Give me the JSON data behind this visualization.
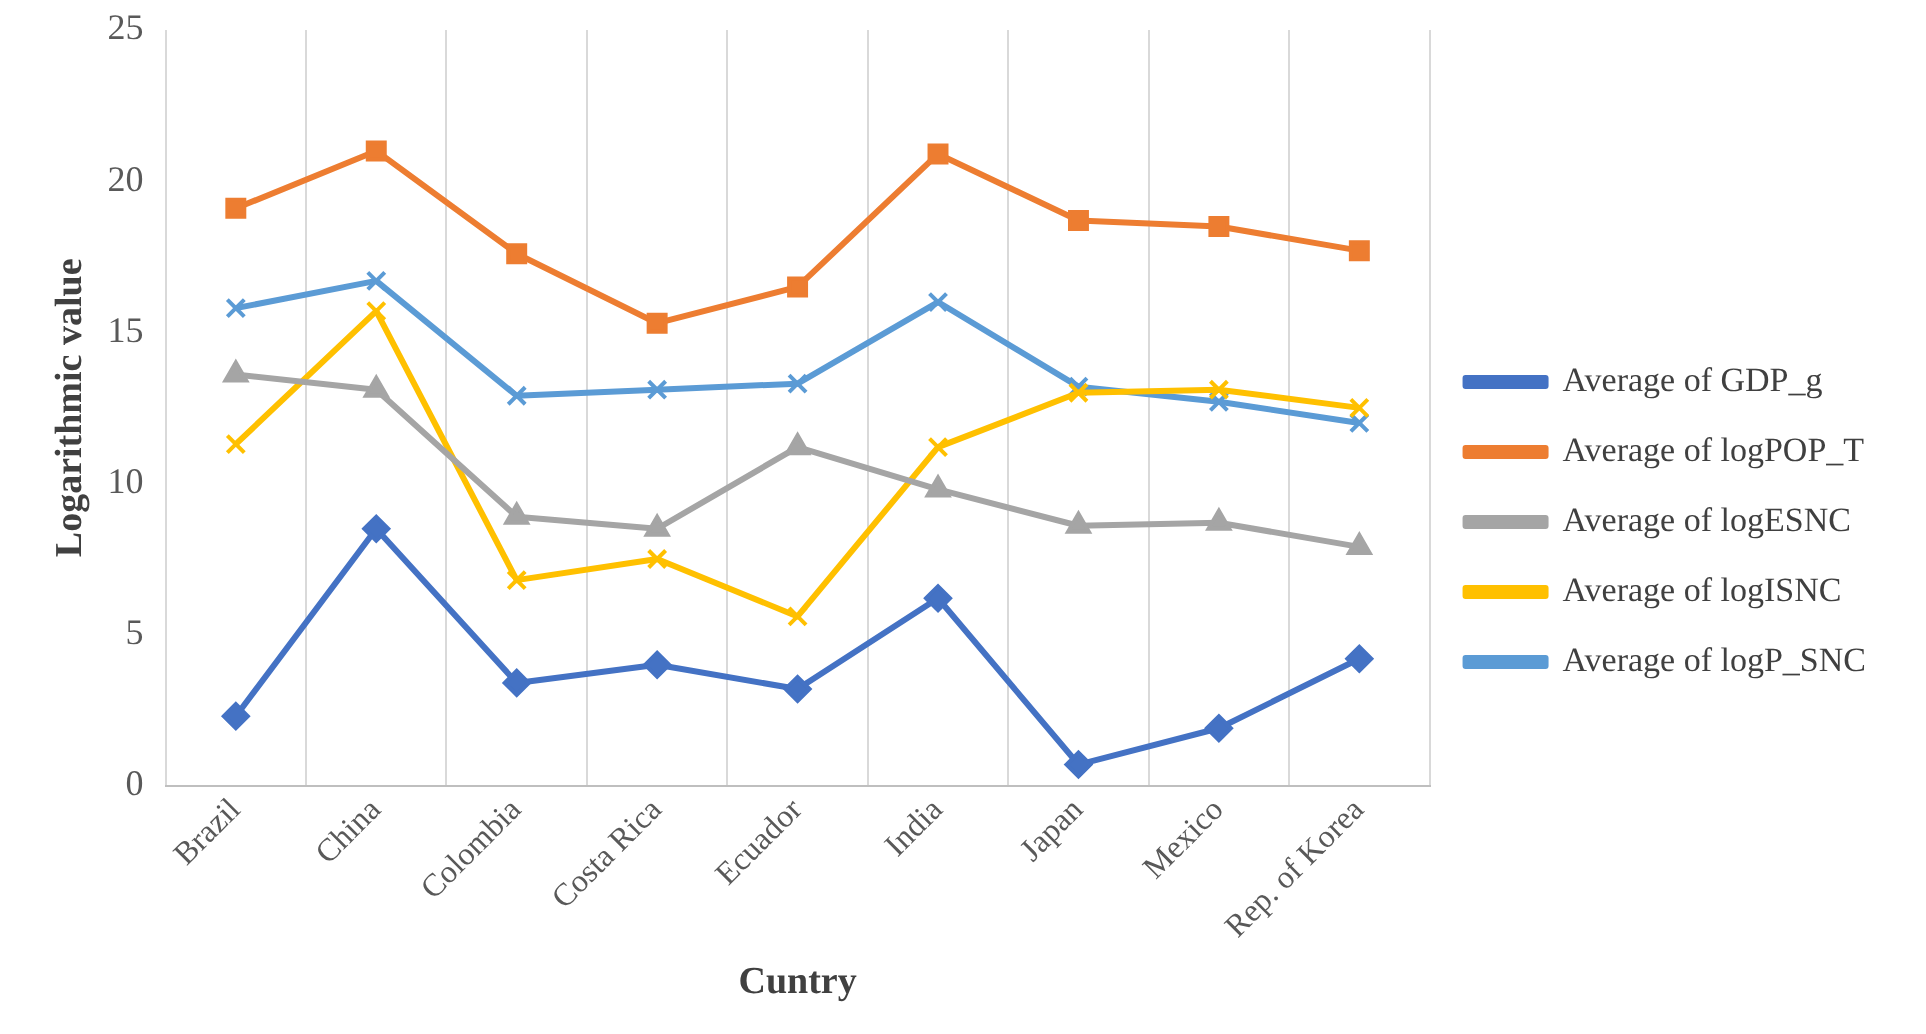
{
  "chart_data": {
    "type": "line",
    "xlabel": "Cuntry",
    "ylabel": "Logarithmic value",
    "categories": [
      "Brazil",
      "China",
      "Colombia",
      "Costa Rica",
      "Ecuador",
      "India",
      "Japan",
      "Mexico",
      "Rep. of Korea"
    ],
    "ylim": [
      0,
      25
    ],
    "yticks": [
      0,
      5,
      10,
      15,
      20,
      25
    ],
    "grid": "x",
    "legend": "right",
    "series": [
      {
        "name": "Average of GDP_g",
        "color": "#4472c4",
        "marker": "diamond",
        "values": [
          2.3,
          8.5,
          3.4,
          4.0,
          3.2,
          6.2,
          0.7,
          1.9,
          4.2
        ]
      },
      {
        "name": "Average of logPOP_T",
        "color": "#ed7d31",
        "marker": "square",
        "values": [
          19.1,
          21.0,
          17.6,
          15.3,
          16.5,
          20.9,
          18.7,
          18.5,
          17.7
        ]
      },
      {
        "name": "Average of logESNC",
        "color": "#a5a5a5",
        "marker": "triangle",
        "values": [
          13.6,
          13.1,
          8.9,
          8.5,
          11.2,
          9.8,
          8.6,
          8.7,
          7.9
        ]
      },
      {
        "name": "Average of logISNC",
        "color": "#ffc000",
        "marker": "cross",
        "values": [
          11.3,
          15.7,
          6.8,
          7.5,
          5.6,
          11.2,
          13.0,
          13.1,
          12.5
        ]
      },
      {
        "name": "Average of logP_SNC",
        "color": "#5b9bd5",
        "marker": "cross",
        "values": [
          15.8,
          16.7,
          12.9,
          13.1,
          13.3,
          16.0,
          13.2,
          12.7,
          12.0
        ]
      }
    ]
  }
}
